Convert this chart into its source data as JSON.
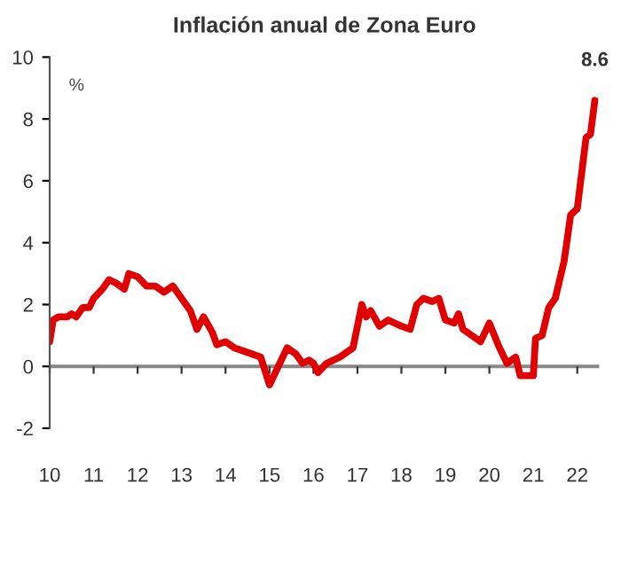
{
  "chart_data": {
    "type": "line",
    "title": "Inflación anual de Zona Euro",
    "ylabel": "%",
    "x": [
      10.0,
      10.08,
      10.2,
      10.4,
      10.5,
      10.6,
      10.75,
      10.9,
      11.0,
      11.2,
      11.35,
      11.5,
      11.7,
      11.8,
      12.0,
      12.2,
      12.4,
      12.6,
      12.8,
      13.0,
      13.2,
      13.35,
      13.5,
      13.7,
      13.8,
      14.0,
      14.2,
      14.4,
      14.6,
      14.8,
      15.0,
      15.2,
      15.4,
      15.6,
      15.75,
      15.9,
      16.0,
      16.1,
      16.3,
      16.6,
      16.9,
      17.1,
      17.2,
      17.3,
      17.5,
      17.7,
      17.85,
      18.0,
      18.2,
      18.35,
      18.5,
      18.7,
      18.85,
      19.0,
      19.2,
      19.3,
      19.4,
      19.6,
      19.8,
      20.0,
      20.2,
      20.4,
      20.6,
      20.7,
      21.0,
      21.05,
      21.2,
      21.35,
      21.5,
      21.7,
      21.85,
      22.0,
      22.2,
      22.3,
      22.4
    ],
    "series": [
      {
        "color": "#e00000",
        "values": [
          0.8,
          1.5,
          1.6,
          1.6,
          1.7,
          1.6,
          1.9,
          1.9,
          2.2,
          2.5,
          2.8,
          2.7,
          2.5,
          3.0,
          2.9,
          2.6,
          2.6,
          2.4,
          2.6,
          2.2,
          1.8,
          1.2,
          1.6,
          1.1,
          0.7,
          0.8,
          0.6,
          0.5,
          0.4,
          0.3,
          -0.6,
          0.0,
          0.6,
          0.4,
          0.1,
          0.2,
          0.1,
          -0.2,
          0.1,
          0.3,
          0.6,
          2.0,
          1.6,
          1.8,
          1.3,
          1.5,
          1.4,
          1.3,
          1.2,
          2.0,
          2.2,
          2.1,
          2.2,
          1.5,
          1.4,
          1.7,
          1.2,
          1.0,
          0.8,
          1.4,
          0.7,
          0.1,
          0.3,
          -0.3,
          -0.3,
          0.9,
          1.0,
          1.9,
          2.2,
          3.4,
          4.9,
          5.1,
          7.4,
          7.5,
          8.6
        ]
      }
    ],
    "xlim": [
      10,
      22.5
    ],
    "xticks": [
      10,
      11,
      12,
      13,
      14,
      15,
      16,
      17,
      18,
      19,
      20,
      21,
      22
    ],
    "ylim": [
      -2,
      10
    ],
    "yticks": [
      -2,
      0,
      2,
      4,
      6,
      8,
      10
    ],
    "annotations": [
      {
        "text": "8.6",
        "x": 22.4,
        "y": 8.6
      }
    ],
    "ref_lines": [
      {
        "axis": "y",
        "value": 0,
        "color": "#888888"
      }
    ],
    "grid": false,
    "legend": false
  }
}
